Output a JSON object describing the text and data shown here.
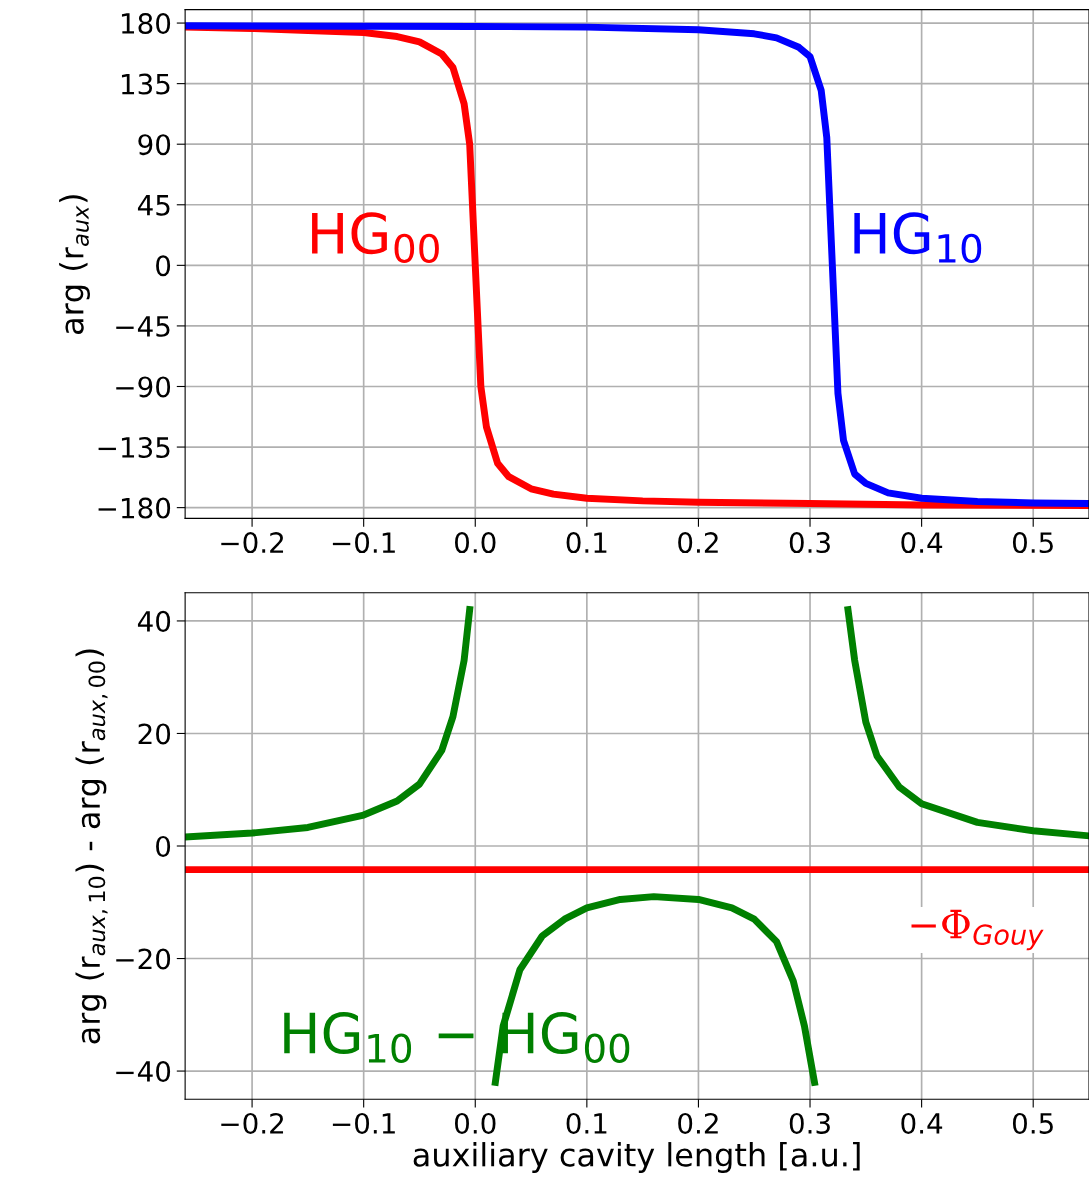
{
  "chart_data": [
    {
      "type": "line",
      "ylabel": "arg (r$_{aux}$)",
      "xlim": [
        -0.26,
        0.55
      ],
      "ylim": [
        -188,
        190
      ],
      "xticks": [
        {
          "value": -0.2,
          "label": "−0.2"
        },
        {
          "value": -0.1,
          "label": "−0.1"
        },
        {
          "value": 0.0,
          "label": "0.0"
        },
        {
          "value": 0.1,
          "label": "0.1"
        },
        {
          "value": 0.2,
          "label": "0.2"
        },
        {
          "value": 0.3,
          "label": "0.3"
        },
        {
          "value": 0.4,
          "label": "0.4"
        },
        {
          "value": 0.5,
          "label": "0.5"
        }
      ],
      "yticks": [
        {
          "value": -180,
          "label": "−180"
        },
        {
          "value": -135,
          "label": "−135"
        },
        {
          "value": -90,
          "label": "−90"
        },
        {
          "value": -45,
          "label": "−45"
        },
        0,
        45,
        90,
        135,
        180
      ],
      "grid": true,
      "legend": false,
      "series": [
        {
          "name": "HG$_{00}$",
          "color": "#ff0000",
          "x": [
            -0.26,
            -0.2,
            -0.15,
            -0.1,
            -0.07,
            -0.05,
            -0.03,
            -0.02,
            -0.01,
            -0.005,
            0,
            0.005,
            0.01,
            0.02,
            0.03,
            0.05,
            0.07,
            0.1,
            0.15,
            0.2,
            0.3,
            0.4,
            0.55
          ],
          "values": [
            177,
            176,
            174.5,
            173,
            170,
            166,
            157,
            147,
            120,
            90,
            0,
            -90,
            -120,
            -147,
            -157,
            -166,
            -170,
            -173,
            -175,
            -176,
            -177,
            -178,
            -178.5
          ]
        },
        {
          "name": "HG$_{10}$",
          "color": "#0000ff",
          "x": [
            -0.26,
            0,
            0.1,
            0.2,
            0.25,
            0.27,
            0.29,
            0.3,
            0.31,
            0.315,
            0.32,
            0.325,
            0.33,
            0.34,
            0.35,
            0.37,
            0.4,
            0.45,
            0.5,
            0.55
          ],
          "values": [
            178,
            177.5,
            177,
            175,
            172,
            169,
            162,
            155,
            130,
            95,
            0,
            -95,
            -130,
            -155,
            -162,
            -169,
            -173,
            -175.5,
            -176.5,
            -177
          ]
        }
      ]
    },
    {
      "type": "line",
      "xlabel": "auxiliary cavity length [a.u.]",
      "ylabel": "arg (r$_{aux,10}$) - arg (r$_{aux,00}$)",
      "xlim": [
        -0.26,
        0.55
      ],
      "ylim": [
        -45,
        45
      ],
      "xticks": [
        {
          "value": -0.2,
          "label": "−0.2"
        },
        {
          "value": -0.1,
          "label": "−0.1"
        },
        {
          "value": 0.0,
          "label": "0.0"
        },
        {
          "value": 0.1,
          "label": "0.1"
        },
        {
          "value": 0.2,
          "label": "0.2"
        },
        {
          "value": 0.3,
          "label": "0.3"
        },
        {
          "value": 0.4,
          "label": "0.4"
        },
        {
          "value": 0.5,
          "label": "0.5"
        }
      ],
      "yticks": [
        {
          "value": -40,
          "label": "−40"
        },
        {
          "value": -20,
          "label": "−20"
        },
        0,
        20,
        40
      ],
      "grid": true,
      "legend": false,
      "series": [
        {
          "name": "HG$_{10}$ − HG$_{00}$",
          "color": "#008000",
          "x": [
            -0.26,
            -0.2,
            -0.15,
            -0.1,
            -0.07,
            -0.05,
            -0.03,
            -0.02,
            -0.01,
            -0.005,
            0.006,
            0.018,
            0.025,
            0.04,
            0.06,
            0.08,
            0.1,
            0.13,
            0.16,
            0.2,
            0.23,
            0.25,
            0.27,
            0.285,
            0.295,
            0.304,
            0.32,
            0.334,
            0.34,
            0.35,
            0.36,
            0.38,
            0.4,
            0.45,
            0.5,
            0.55
          ],
          "values": [
            1.6,
            2.3,
            3.3,
            5.5,
            8,
            11,
            17,
            23,
            33,
            42,
            null,
            -42,
            -32,
            -22,
            -16,
            -13,
            -11,
            -9.5,
            -9,
            -9.5,
            -11,
            -13,
            -17,
            -24,
            -32,
            -42,
            null,
            42,
            33,
            22,
            16,
            10.5,
            7.5,
            4.2,
            2.7,
            1.8
          ]
        }
      ],
      "ref_lines": [
        {
          "axis": "y",
          "value": -4.2,
          "label": "−Φ$_{Gouy}$",
          "color": "#ff0000"
        }
      ]
    }
  ]
}
